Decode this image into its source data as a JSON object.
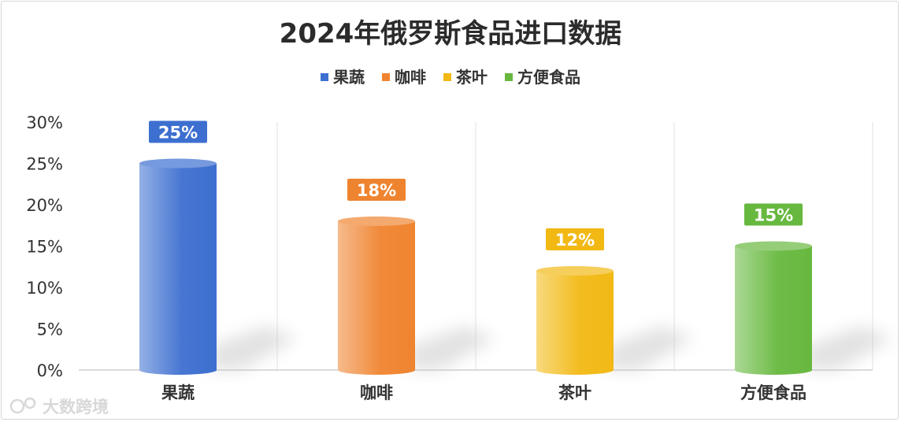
{
  "watermark": "大数跨境",
  "chart_data": {
    "type": "bar",
    "title": "2024年俄罗斯食品进口数据",
    "categories": [
      "果蔬",
      "咖啡",
      "茶叶",
      "方便食品"
    ],
    "values": [
      25,
      18,
      12,
      15
    ],
    "value_labels": [
      "25%",
      "18%",
      "12%",
      "15%"
    ],
    "colors": [
      "#3d6fd0",
      "#ef8430",
      "#f2b915",
      "#67b83f"
    ],
    "legend": [
      "果蔬",
      "咖啡",
      "茶叶",
      "方便食品"
    ],
    "legend_placement": "top-center",
    "ylim": [
      0,
      30
    ],
    "yticks": [
      "0%",
      "5%",
      "10%",
      "15%",
      "20%",
      "25%",
      "30%"
    ],
    "grid": "vertical-separators",
    "style": "3d-cylinder"
  }
}
